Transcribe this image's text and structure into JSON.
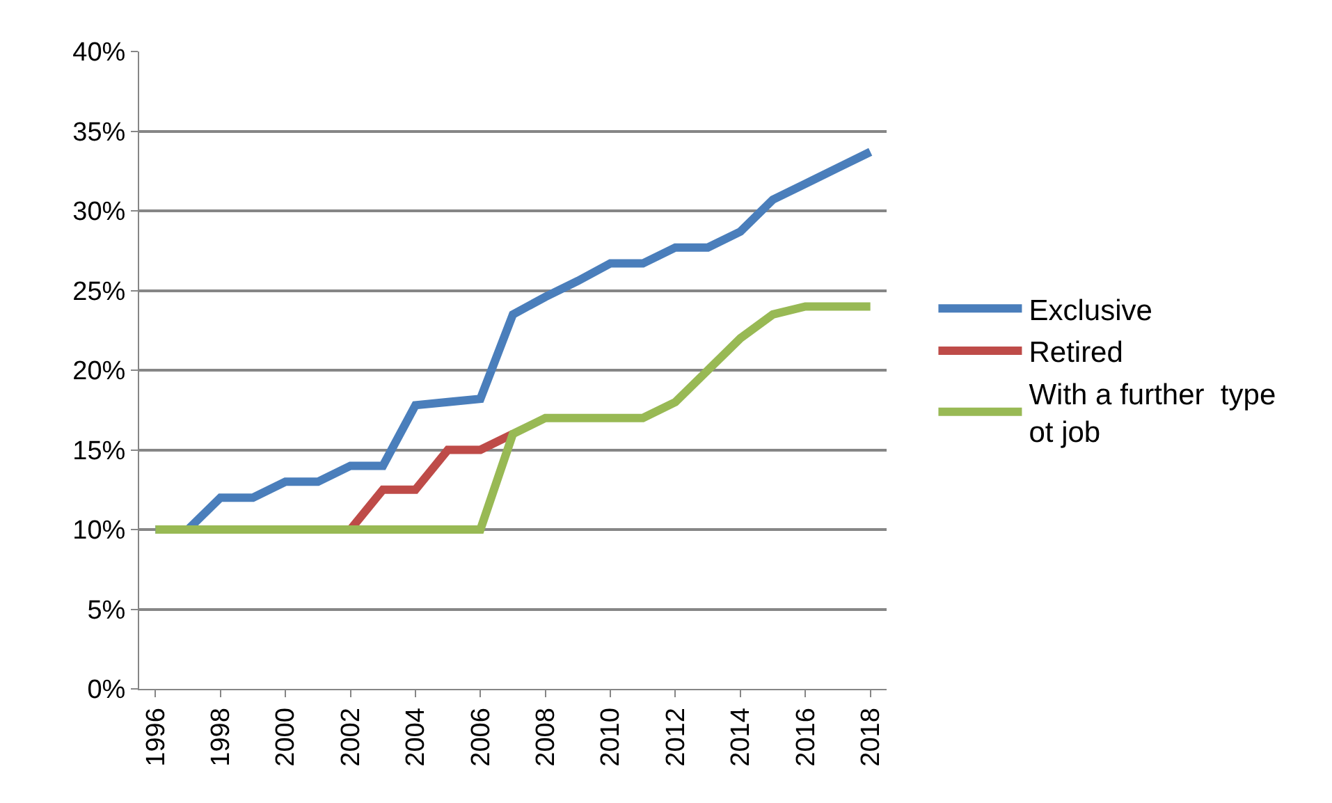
{
  "chart_data": {
    "type": "line",
    "categories": [
      "1996",
      null,
      "1998",
      null,
      "2000",
      null,
      "2002",
      null,
      "2004",
      null,
      "2006",
      null,
      "2008",
      null,
      "2010",
      null,
      "2012",
      null,
      "2014",
      null,
      "2016",
      null,
      "2018"
    ],
    "series": [
      {
        "name": "Exclusive",
        "color": "#4a7ebb",
        "values": [
          10,
          10,
          12,
          12,
          13,
          13,
          14,
          14,
          17.8,
          18,
          18.2,
          23.5,
          24.6,
          25.6,
          26.7,
          26.7,
          27.7,
          27.7,
          28.7,
          30.7,
          31.7,
          32.7,
          33.7
        ]
      },
      {
        "name": "Retired",
        "color": "#be4b48",
        "values": [
          null,
          null,
          null,
          null,
          null,
          null,
          10,
          12.5,
          12.5,
          15,
          15,
          16,
          null,
          null,
          null,
          null,
          null,
          null,
          null,
          null,
          null,
          null,
          null
        ]
      },
      {
        "name": "With a further  type ot job",
        "color": "#98b954",
        "values": [
          10,
          10,
          10,
          10,
          10,
          10,
          10,
          10,
          10,
          10,
          10,
          16,
          17,
          17,
          17,
          17,
          18,
          20,
          22,
          23.5,
          24,
          24,
          24
        ]
      }
    ],
    "ylim": [
      0,
      40
    ],
    "yticks": [
      {
        "value": 0,
        "label": "0%"
      },
      {
        "value": 5,
        "label": "5%"
      },
      {
        "value": 10,
        "label": "10%"
      },
      {
        "value": 15,
        "label": "15%"
      },
      {
        "value": 20,
        "label": "20%"
      },
      {
        "value": 25,
        "label": "25%"
      },
      {
        "value": 30,
        "label": "30%"
      },
      {
        "value": 35,
        "label": "35%"
      },
      {
        "value": 40,
        "label": "40%"
      }
    ],
    "grid": "y",
    "legend": "right",
    "marker": "none",
    "line_style": "solid"
  }
}
